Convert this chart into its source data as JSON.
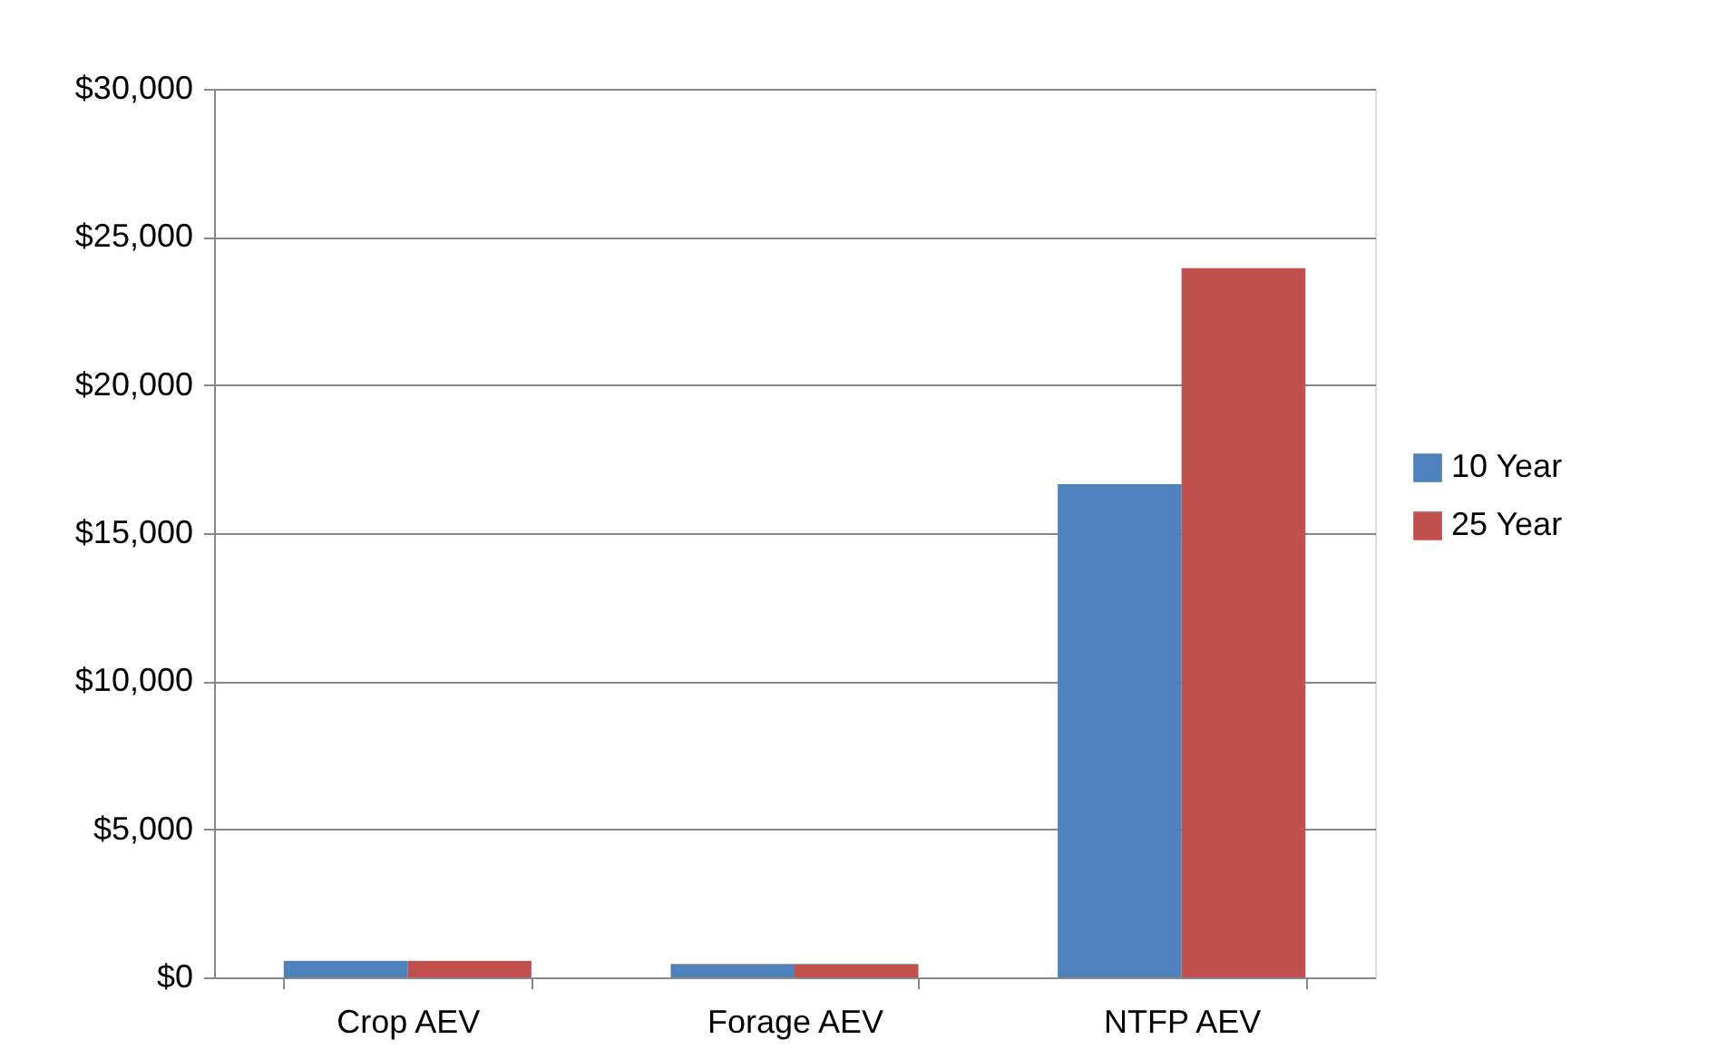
{
  "chart_data": {
    "type": "bar",
    "categories": [
      "Crop AEV",
      "Forage AEV",
      "NTFP  AEV"
    ],
    "series": [
      {
        "name": "10 Year",
        "color": "#4f81bd",
        "values": [
          560,
          450,
          16650
        ]
      },
      {
        "name": "25 Year",
        "color": "#c0504d",
        "values": [
          560,
          450,
          23950
        ]
      }
    ],
    "ylim": [
      0,
      30000
    ],
    "yticks": [
      {
        "value": 0,
        "label": "$0"
      },
      {
        "value": 5000,
        "label": "$5,000"
      },
      {
        "value": 10000,
        "label": "$10,000"
      },
      {
        "value": 15000,
        "label": "$15,000"
      },
      {
        "value": 20000,
        "label": "$20,000"
      },
      {
        "value": 25000,
        "label": "$25,000"
      },
      {
        "value": 30000,
        "label": "$30,000"
      }
    ],
    "grid": "y",
    "legend": "right"
  }
}
